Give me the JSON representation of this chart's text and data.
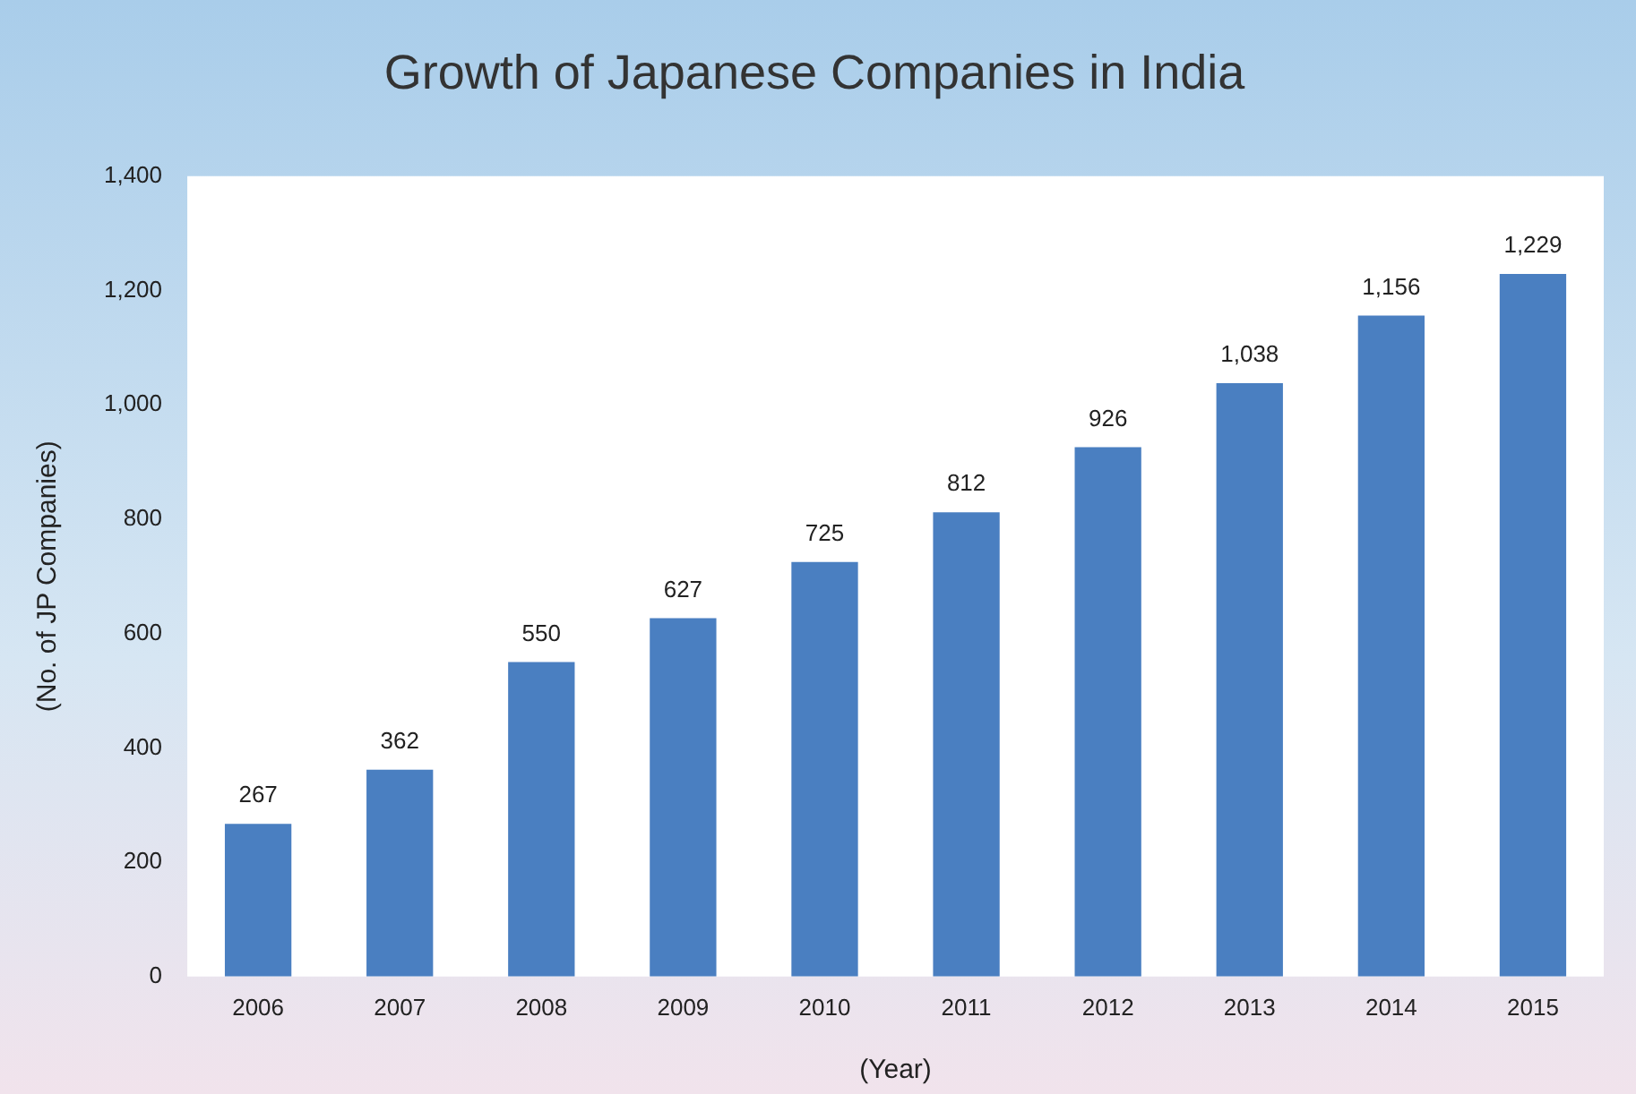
{
  "chart_data": {
    "type": "bar",
    "title": "Growth of Japanese Companies in India",
    "xlabel": "(Year)",
    "ylabel": "(No. of JP Companies)",
    "categories": [
      "2006",
      "2007",
      "2008",
      "2009",
      "2010",
      "2011",
      "2012",
      "2013",
      "2014",
      "2015"
    ],
    "values": [
      267,
      362,
      550,
      627,
      725,
      812,
      926,
      1038,
      1156,
      1229
    ],
    "value_labels": [
      "267",
      "362",
      "550",
      "627",
      "725",
      "812",
      "926",
      "1,038",
      "1,156",
      "1,229"
    ],
    "color": "#4a7fc1",
    "ylim": [
      0,
      1400
    ],
    "yticks": [
      0,
      200,
      400,
      600,
      800,
      {
        "value": 1000,
        "label": "1,000"
      },
      {
        "value": 1200,
        "label": "1,200"
      },
      {
        "value": 1400,
        "label": "1,400"
      }
    ],
    "grid": false,
    "legend": false
  }
}
